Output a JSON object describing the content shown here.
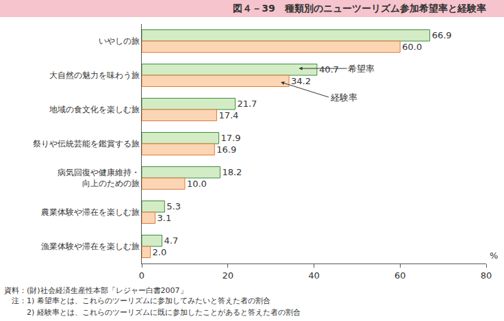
{
  "chart_data": {
    "type": "bar",
    "orientation": "horizontal",
    "title": "図４－39　種類別のニューツーリズム参加希望率と経験率",
    "xlabel": "%",
    "categories": [
      "いやしの旅",
      "大自然の魅力を味わう旅",
      "地域の食文化を楽しむ旅",
      "祭りや伝統芸能を鑑賞する旅",
      "病気回復や健康維持・\n向上のための旅",
      "農業体験や滞在を楽しむ旅",
      "漁業体験や滞在を楽しむ旅"
    ],
    "series": [
      {
        "name": "希望率",
        "color": "#d3ecc6",
        "values": [
          66.9,
          40.7,
          21.7,
          17.9,
          18.2,
          5.3,
          4.7
        ],
        "value_labels": [
          "66.9",
          "40.7",
          "21.7",
          "17.9",
          "18.2",
          "5.3",
          "4.7"
        ]
      },
      {
        "name": "経験率",
        "color": "#fcd6b4",
        "values": [
          60.0,
          34.2,
          17.4,
          16.9,
          10.0,
          3.1,
          2.0
        ],
        "value_labels": [
          "60.0",
          "34.2",
          "17.4",
          "16.9",
          "10.0",
          "3.1",
          "2.0"
        ]
      }
    ],
    "xlim": [
      0,
      80
    ],
    "xticks": [
      0,
      20,
      40,
      60,
      80
    ],
    "grid": false,
    "data_labels": true,
    "annotations": [
      {
        "text": "希望率",
        "category": "大自然の魅力を味わう旅",
        "series": "希望率",
        "x": 36.5
      },
      {
        "text": "経験率",
        "category": "大自然の魅力を味わう旅",
        "series": "経験率",
        "x": 32.3
      }
    ],
    "notes": [
      "資料：(財)社会経済生産性本部「レジャー白書2007」",
      "　注：1) 希望率とは、これらのツーリズムに参加してみたいと答えた者の割合",
      "　　　2) 経験率とは、これらのツーリズムに既に参加したことがあると答えた者の割合"
    ]
  }
}
